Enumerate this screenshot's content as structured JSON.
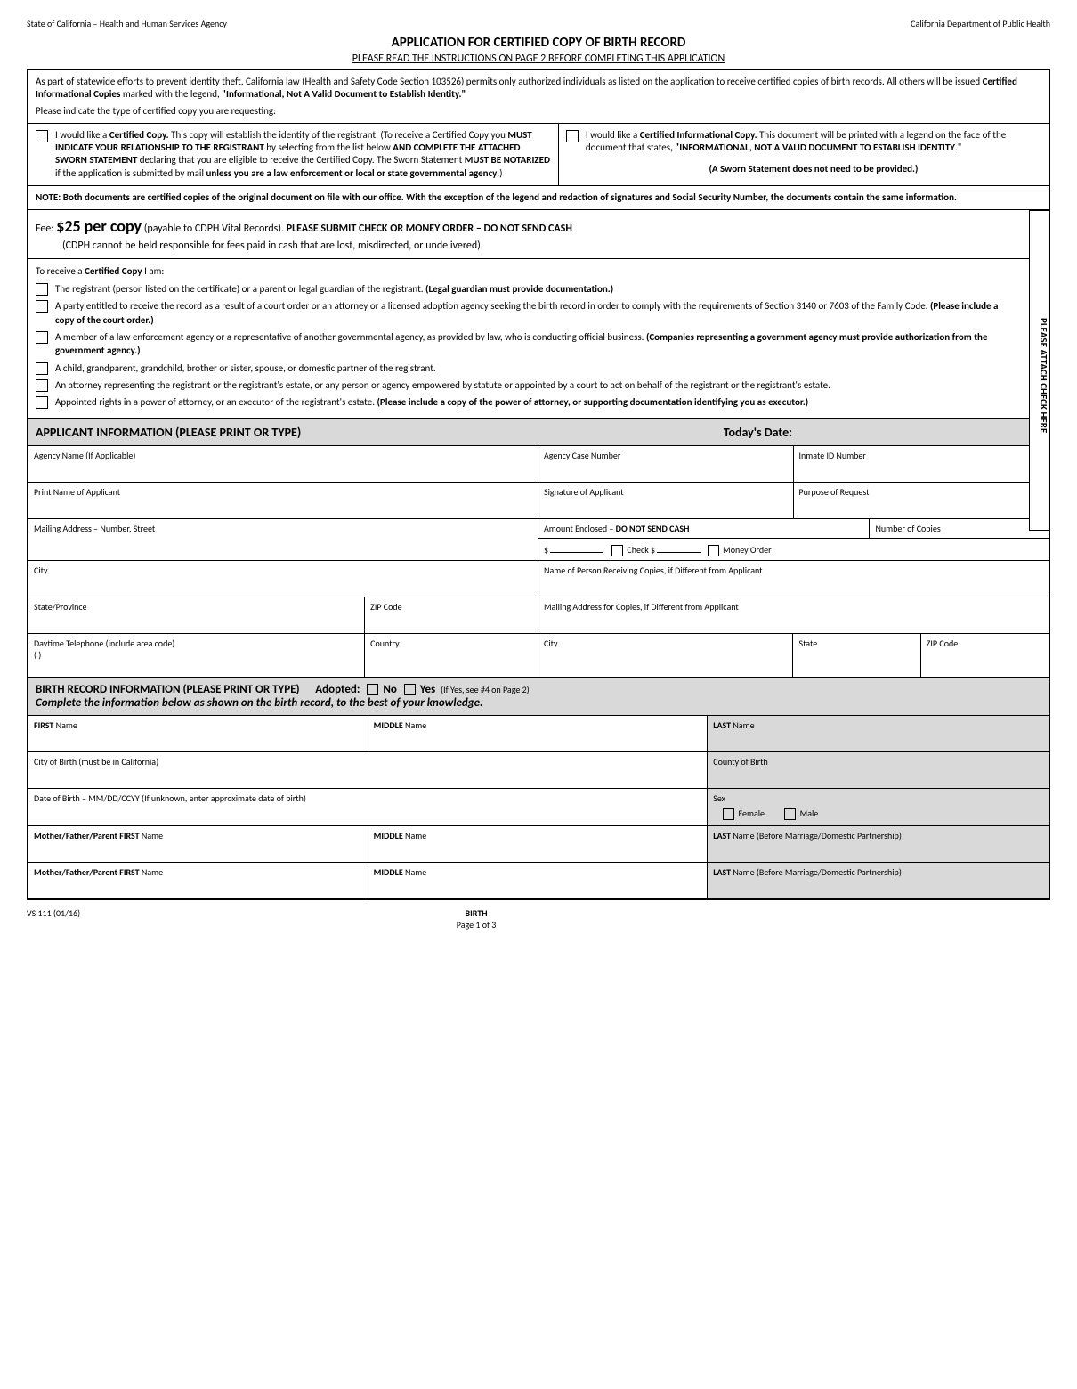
{
  "header": {
    "left": "State of California – Health and Human Services Agency",
    "right": "California Department of Public Health"
  },
  "title": "APPLICATION FOR CERTIFIED COPY OF BIRTH RECORD",
  "subtitle": "PLEASE READ THE INSTRUCTIONS ON PAGE 2 BEFORE COMPLETING THIS APPLICATION",
  "intro": {
    "p1a": "As part of statewide efforts to prevent identity theft, California law (Health and Safety Code Section 103526) permits only authorized individuals as listed on the application to receive certified copies of birth records. All others will be issued ",
    "p1b": "Certified Informational Copies",
    "p1c": " marked with the legend, ",
    "p1d": "\"Informational, Not A Valid Document to Establish Identity.\"",
    "p2": "Please indicate the type of certified copy you are requesting:"
  },
  "copy_options": {
    "left": {
      "l1a": "I would like a ",
      "l1b": "Certified Copy.",
      "l1c": " This copy will establish the identity of the registrant. (To receive a Certified Copy you ",
      "l1d": "MUST INDICATE YOUR RELATIONSHIP TO THE REGISTRANT",
      "l1e": " by selecting from the list below ",
      "l1f": "AND COMPLETE THE ATTACHED SWORN STATEMENT",
      "l1g": " declaring that you are eligible to receive the Certified Copy. The Sworn Statement ",
      "l1h": "MUST BE NOTARIZED",
      "l1i": " if the application is submitted by mail ",
      "l1j": "unless you are a law enforcement or local or state governmental agency",
      "l1k": ".)"
    },
    "right": {
      "r1a": "I would like a ",
      "r1b": "Certified Informational Copy.",
      "r1c": " This document will be printed with a legend on the face of the document that states",
      "r1d": ", \"",
      "r1e": "INFORMATIONAL, NOT A VALID DOCUMENT TO ESTABLISH IDENTITY",
      "r1f": ".\"",
      "r2": "(A Sworn Statement does not need to be provided.)"
    }
  },
  "note": "NOTE: Both documents are certified copies of the original document on file with our office. With the exception of the legend and redaction of signatures and Social Security Number, the documents contain the same information.",
  "fee": {
    "prefix": "Fee: ",
    "amount": "$25 per copy",
    "suffix": " (payable to CDPH Vital Records). ",
    "bold": "PLEASE SUBMIT CHECK OR MONEY ORDER – DO NOT SEND CASH",
    "line2": "(CDPH cannot be held responsible for fees paid in cash that are lost, misdirected, or undelivered)."
  },
  "side_tab": "PLEASE ATTACH CHECK HERE",
  "certified_copy": {
    "heading_a": "To receive a ",
    "heading_b": "Certified Copy",
    "heading_c": " I am:",
    "items": [
      {
        "a": "The registrant (person listed on the certificate) or a parent or legal guardian of the registrant. ",
        "b": "(Legal guardian must provide documentation.)"
      },
      {
        "a": "A party entitled to receive the record as a result of a court order or an attorney or a licensed adoption agency seeking the birth record in order to comply with the requirements of Section 3140 or 7603 of the Family Code. ",
        "b": "(Please include a copy of the court order.)"
      },
      {
        "a": "A member of a law enforcement agency or a representative of another governmental agency, as provided by law, who is conducting official business. ",
        "b": "(Companies representing a government agency must provide authorization from the government agency.)"
      },
      {
        "a": "A child, grandparent, grandchild, brother or sister, spouse, or domestic partner of the registrant.",
        "b": ""
      },
      {
        "a": "An attorney representing the registrant or the registrant's estate, or any person or agency empowered by statute or appointed by a court to act on behalf of the registrant or the registrant's estate.",
        "b": ""
      },
      {
        "a": "Appointed rights in a power of attorney, or an executor of the registrant's estate. ",
        "b": "(Please include a copy of the power of attorney, or supporting documentation identifying you as executor.)"
      }
    ]
  },
  "applicant_header": {
    "left": "APPLICANT INFORMATION (PLEASE PRINT OR TYPE)",
    "right": "Today's Date:"
  },
  "applicant_fields": {
    "agency_name": "Agency Name (If Applicable)",
    "agency_case": "Agency Case Number",
    "inmate_id": "Inmate ID Number",
    "print_name": "Print Name of Applicant",
    "signature": "Signature of Applicant",
    "purpose": "Purpose of Request",
    "mailing_addr": "Mailing Address – Number, Street",
    "amount_enclosed_a": "Amount Enclosed – ",
    "amount_enclosed_b": "DO NOT SEND CASH",
    "num_copies": "Number of Copies",
    "dollar": "$",
    "check_label": "Check $",
    "money_order": "Money Order",
    "city": "City",
    "receiving_name": "Name of Person Receiving Copies, if Different from Applicant",
    "state_province": "State/Province",
    "zip": "ZIP Code",
    "copies_mailing": "Mailing Address for Copies, if Different from Applicant",
    "daytime_phone": "Daytime Telephone (include area code)",
    "phone_parens": "(          )",
    "country": "Country",
    "city2": "City",
    "state": "State",
    "zip2": "ZIP Code"
  },
  "birth_header": {
    "left": "BIRTH RECORD INFORMATION (PLEASE PRINT OR TYPE)",
    "adopted": "Adopted:",
    "no": "No",
    "yes": "Yes",
    "yes_note": "(If Yes, see #4 on Page 2)",
    "line2": "Complete the information below as shown on the birth record, to the best of your knowledge."
  },
  "birth_fields": {
    "first_a": "FIRST",
    "first_b": " Name",
    "middle_a": "MIDDLE",
    "middle_b": " Name",
    "last_a": "LAST",
    "last_b": " Name",
    "city_birth": "City of Birth (must be in California)",
    "county_birth": "County of Birth",
    "dob": "Date of Birth – MM/DD/CCYY (If unknown, enter approximate date of birth)",
    "sex": "Sex",
    "female": "Female",
    "male": "Male",
    "parent1_a": "Mother/Father/Parent FIRST",
    "parent1_b": " Name",
    "parent1_last_a": "LAST",
    "parent1_last_b": " Name (Before Marriage/Domestic Partnership)",
    "parent2_a": "Mother/Father/Parent FIRST",
    "parent2_b": " Name",
    "parent2_last_a": "LAST",
    "parent2_last_b": " Name (Before Marriage/Domestic Partnership)"
  },
  "footer": {
    "left": "VS 111 (01/16)",
    "center_top": "BIRTH",
    "center_bottom": "Page 1 of 3"
  },
  "colors": {
    "shaded": "#d9d9d9",
    "border": "#000000",
    "text": "#000000",
    "bg": "#ffffff"
  }
}
